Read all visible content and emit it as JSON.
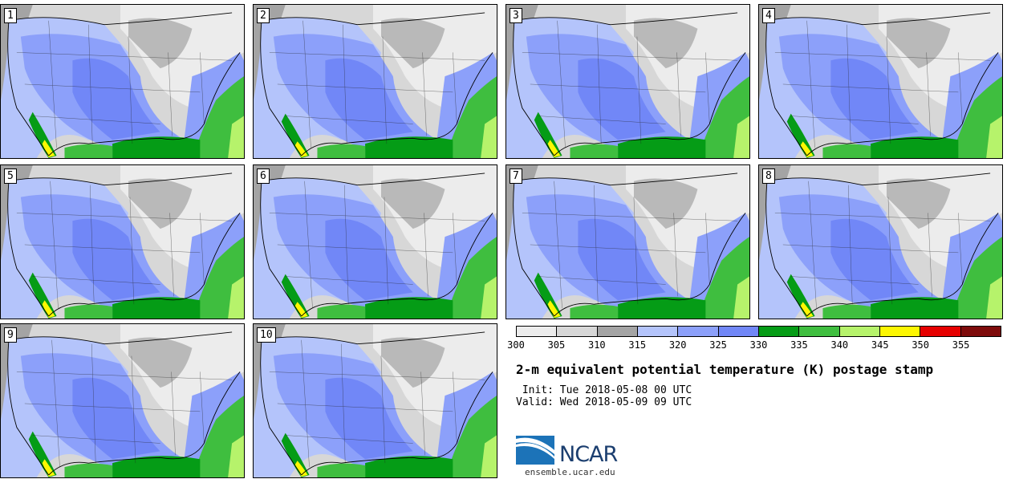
{
  "panels": [
    "1",
    "2",
    "3",
    "4",
    "5",
    "6",
    "7",
    "8",
    "9",
    "10"
  ],
  "colorbar": {
    "colors": [
      "#ececec",
      "#d7d7d7",
      "#a4a4a4",
      "#b4c4fb",
      "#8ca0fa",
      "#7187f7",
      "#059c16",
      "#3fbe3f",
      "#b6f36b",
      "#fdf702",
      "#e60000",
      "#7e0b0b"
    ],
    "ticks": [
      "300",
      "305",
      "310",
      "315",
      "320",
      "325",
      "330",
      "335",
      "340",
      "345",
      "350",
      "355"
    ]
  },
  "title": "2-m equivalent potential temperature (K) postage stamp",
  "init": " Init: Tue 2018-05-08 00 UTC",
  "valid": "Valid: Wed 2018-05-09 09 UTC",
  "logo": {
    "text": "NCAR",
    "url": "ensemble.ucar.edu"
  }
}
